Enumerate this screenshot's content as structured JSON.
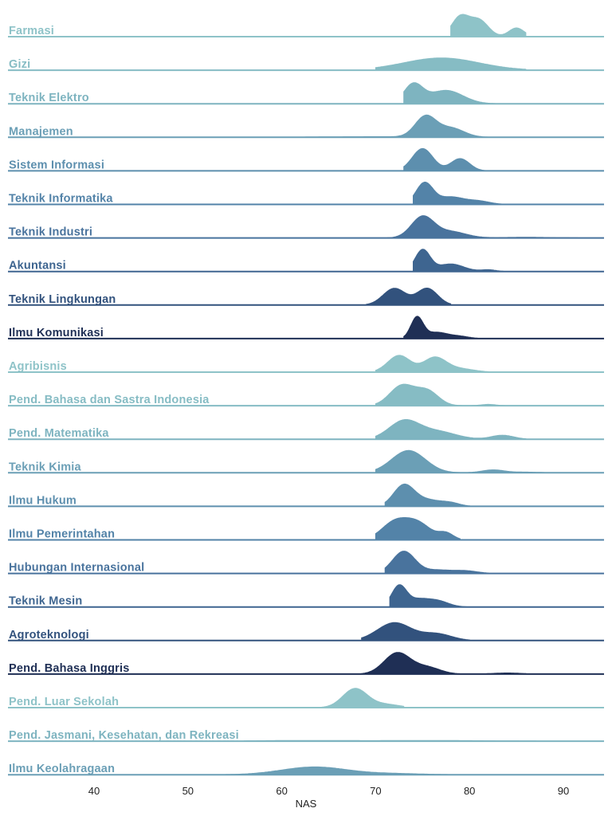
{
  "chart_data": {
    "type": "ridgeline",
    "xlabel": "NAS",
    "xlim": [
      32,
      95
    ],
    "x_ticks": [
      40,
      50,
      60,
      70,
      80,
      90
    ],
    "grid": false,
    "legend": "none",
    "series": [
      {
        "name": "Farmasi",
        "color": "#8ec3c8",
        "support": [
          78,
          86
        ],
        "peaks": [
          [
            79,
            1.0,
            0.9
          ],
          [
            81,
            0.85,
            1.0
          ],
          [
            85,
            0.45,
            0.8
          ]
        ]
      },
      {
        "name": "Gizi",
        "color": "#86bcc4",
        "support": [
          70,
          86
        ],
        "peaks": [
          [
            77,
            0.55,
            4.0
          ]
        ]
      },
      {
        "name": "Teknik Elektro",
        "color": "#7eb4c0",
        "support": [
          73,
          84
        ],
        "peaks": [
          [
            74,
            0.85,
            1.0
          ],
          [
            77.5,
            0.6,
            1.8
          ]
        ]
      },
      {
        "name": "Manajemen",
        "color": "#6b9fb6",
        "support": [
          58,
          90
        ],
        "peaks": [
          [
            75.3,
            1.0,
            1.1
          ],
          [
            78,
            0.45,
            1.4
          ],
          [
            70,
            0.03,
            6.0
          ]
        ]
      },
      {
        "name": "Sistem Informasi",
        "color": "#5d8fae",
        "support": [
          73,
          86
        ],
        "peaks": [
          [
            75,
            1.0,
            1.1
          ],
          [
            79,
            0.55,
            1.0
          ]
        ]
      },
      {
        "name": "Teknik Informatika",
        "color": "#5383a8",
        "support": [
          74,
          86
        ],
        "peaks": [
          [
            75.2,
            1.0,
            0.9
          ],
          [
            78,
            0.35,
            1.4
          ],
          [
            81,
            0.15,
            1.2
          ]
        ]
      },
      {
        "name": "Teknik Industri",
        "color": "#49739d",
        "support": [
          71,
          92
        ],
        "peaks": [
          [
            75,
            1.0,
            1.2
          ],
          [
            78,
            0.3,
            1.6
          ],
          [
            86,
            0.03,
            3.0
          ]
        ]
      },
      {
        "name": "Akuntansi",
        "color": "#3e6590",
        "support": [
          74,
          86
        ],
        "peaks": [
          [
            75,
            1.0,
            0.8
          ],
          [
            78,
            0.35,
            1.4
          ],
          [
            82,
            0.08,
            0.8
          ]
        ]
      },
      {
        "name": "Teknik Lingkungan",
        "color": "#32527d",
        "support": [
          69,
          78
        ],
        "peaks": [
          [
            72,
            0.75,
            1.2
          ],
          [
            75.5,
            0.75,
            1.1
          ]
        ]
      },
      {
        "name": "Ilmu Komunikasi",
        "color": "#1f2f55",
        "support": [
          73,
          84
        ],
        "peaks": [
          [
            74.4,
            1.0,
            0.65
          ],
          [
            76.5,
            0.3,
            1.2
          ],
          [
            79,
            0.1,
            1.0
          ]
        ]
      },
      {
        "name": "Agribisnis",
        "color": "#8ec3c8",
        "support": [
          70,
          82
        ],
        "peaks": [
          [
            72.5,
            0.75,
            1.2
          ],
          [
            76.3,
            0.65,
            1.2
          ],
          [
            79,
            0.15,
            1.5
          ]
        ]
      },
      {
        "name": "Pend. Bahasa dan Sastra Indonesia",
        "color": "#86bcc4",
        "support": [
          70,
          84
        ],
        "peaks": [
          [
            72.8,
            0.9,
            1.3
          ],
          [
            75.5,
            0.65,
            1.2
          ],
          [
            82,
            0.06,
            0.8
          ]
        ]
      },
      {
        "name": "Pend. Matematika",
        "color": "#7eb4c0",
        "support": [
          70,
          86
        ],
        "peaks": [
          [
            73,
            0.8,
            1.6
          ],
          [
            76.5,
            0.35,
            2.0
          ],
          [
            83.5,
            0.18,
            1.2
          ]
        ]
      },
      {
        "name": "Teknik Kimia",
        "color": "#6b9fb6",
        "support": [
          70,
          88
        ],
        "peaks": [
          [
            73.5,
            1.0,
            1.8
          ],
          [
            82.5,
            0.13,
            1.2
          ],
          [
            86,
            0.03,
            1.5
          ]
        ]
      },
      {
        "name": "Ilmu Hukum",
        "color": "#5d8fae",
        "support": [
          71,
          80
        ],
        "peaks": [
          [
            73,
            1.0,
            1.1
          ],
          [
            75.5,
            0.3,
            1.4
          ],
          [
            78,
            0.15,
            1.0
          ]
        ]
      },
      {
        "name": "Ilmu Pemerintahan",
        "color": "#5383a8",
        "support": [
          70,
          79
        ],
        "peaks": [
          [
            72,
            0.8,
            1.4
          ],
          [
            74.5,
            0.75,
            1.4
          ],
          [
            77.5,
            0.3,
            0.8
          ]
        ]
      },
      {
        "name": "Hubungan Internasional",
        "color": "#49739d",
        "support": [
          71,
          82
        ],
        "peaks": [
          [
            73,
            1.0,
            1.2
          ],
          [
            76.5,
            0.15,
            1.4
          ],
          [
            79.5,
            0.12,
            1.3
          ]
        ]
      },
      {
        "name": "Teknik Mesin",
        "color": "#3e6590",
        "support": [
          71.5,
          81
        ],
        "peaks": [
          [
            72.5,
            1.0,
            0.8
          ],
          [
            74.5,
            0.3,
            1.0
          ],
          [
            76.5,
            0.3,
            1.2
          ]
        ]
      },
      {
        "name": "Agroteknologi",
        "color": "#32527d",
        "support": [
          68.5,
          80
        ],
        "peaks": [
          [
            72,
            0.8,
            1.8
          ],
          [
            76.5,
            0.3,
            1.6
          ]
        ]
      },
      {
        "name": "Pend. Bahasa Inggris",
        "color": "#1f2f55",
        "support": [
          68.5,
          86
        ],
        "peaks": [
          [
            72.3,
            0.95,
            1.4
          ],
          [
            75.5,
            0.3,
            1.4
          ],
          [
            84,
            0.05,
            1.5
          ]
        ]
      },
      {
        "name": "Pend. Luar Sekolah",
        "color": "#8ec3c8",
        "support": [
          64,
          73
        ],
        "peaks": [
          [
            67.8,
            0.85,
            1.3
          ],
          [
            71,
            0.15,
            1.5
          ]
        ]
      },
      {
        "name": "Pend. Jasmani, Kesehatan, dan Rekreasi",
        "color": "#7eb4c0",
        "support": [
          56,
          88
        ],
        "peaks": [
          [
            62,
            0.03,
            5.0
          ],
          [
            76,
            0.03,
            6.0
          ]
        ]
      },
      {
        "name": "Ilmu Keolahragaan",
        "color": "#6b9fb6",
        "support": [
          52,
          80
        ],
        "peaks": [
          [
            63.5,
            0.35,
            3.5
          ],
          [
            72,
            0.05,
            3.0
          ]
        ]
      }
    ]
  }
}
